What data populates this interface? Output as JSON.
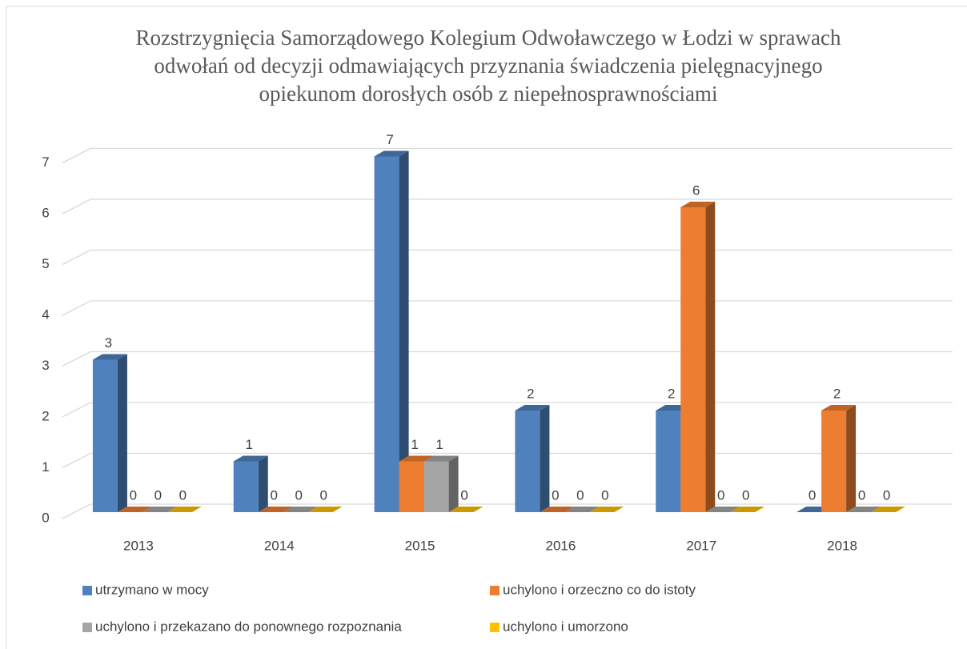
{
  "chart_data": {
    "type": "bar3d",
    "title": "Rozstrzygnięcia Samorządowego Kolegium Odwoławczego w Łodzi w sprawach odwołań od decyzji odmawiających przyznania świadczenia pielęgnacyjnego opiekunom dorosłych osób z niepełnosprawnościami",
    "categories": [
      "2013",
      "2014",
      "2015",
      "2016",
      "2017",
      "2018"
    ],
    "series": [
      {
        "name": "utrzymano w mocy",
        "color": "#4f81bd",
        "values": [
          3,
          1,
          7,
          2,
          2,
          0
        ]
      },
      {
        "name": "uchylono i orzeczno co do istoty",
        "color": "#ed7d31",
        "values": [
          0,
          0,
          1,
          0,
          6,
          2
        ]
      },
      {
        "name": "uchylono i przekazano do ponownego rozpoznania",
        "color": "#a5a5a5",
        "values": [
          0,
          0,
          1,
          0,
          0,
          0
        ]
      },
      {
        "name": "uchylono i umorzono",
        "color": "#ffc000",
        "values": [
          0,
          0,
          0,
          0,
          0,
          0
        ]
      }
    ],
    "ylim": [
      0,
      7
    ],
    "yticks": [
      0,
      1,
      2,
      3,
      4,
      5,
      6,
      7
    ],
    "grid": true,
    "legend": "bottom"
  }
}
